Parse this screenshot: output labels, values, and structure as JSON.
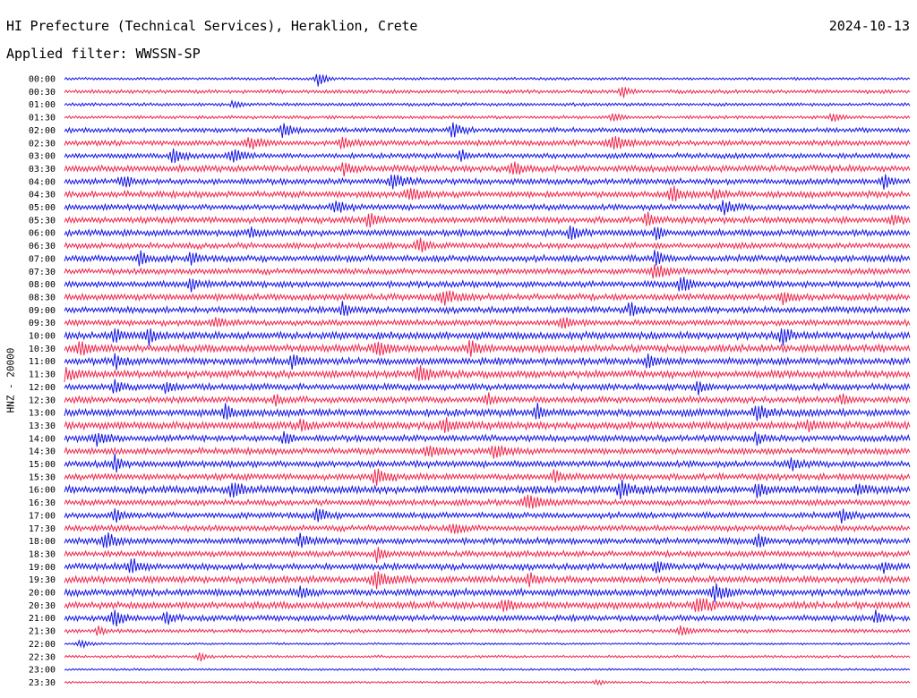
{
  "header": {
    "station": "HI Prefecture (Technical Services), Heraklion, Crete",
    "date": "2024-10-13",
    "filter": "Applied filter: WWSSN-SP"
  },
  "channel_label": "HNZ - 20000",
  "colors": {
    "even": "#1414e6",
    "odd": "#f0284e"
  },
  "chart_data": {
    "type": "line",
    "title": "HI Prefecture (Technical Services), Heraklion, Crete",
    "date": "2024-10-13",
    "ylabel": "HNZ - 20000",
    "grid": false,
    "legend": "none",
    "rows": [
      {
        "label": "00:00",
        "amp": 0.25,
        "events": [
          {
            "t": 0.3,
            "a": 1.4,
            "w": 0.006
          }
        ]
      },
      {
        "label": "00:30",
        "amp": 0.35,
        "events": [
          {
            "t": 0.66,
            "a": 1.0,
            "w": 0.006
          }
        ]
      },
      {
        "label": "01:00",
        "amp": 0.3,
        "events": [
          {
            "t": 0.2,
            "a": 0.5,
            "w": 0.006
          }
        ]
      },
      {
        "label": "01:30",
        "amp": 0.3,
        "events": [
          {
            "t": 0.65,
            "a": 0.7,
            "w": 0.008
          },
          {
            "t": 0.91,
            "a": 0.7,
            "w": 0.008
          }
        ]
      },
      {
        "label": "02:00",
        "amp": 0.45,
        "events": [
          {
            "t": 0.26,
            "a": 1.2,
            "w": 0.008
          },
          {
            "t": 0.46,
            "a": 1.3,
            "w": 0.008
          }
        ]
      },
      {
        "label": "02:30",
        "amp": 0.5,
        "events": [
          {
            "t": 0.22,
            "a": 0.9,
            "w": 0.012
          },
          {
            "t": 0.33,
            "a": 0.9,
            "w": 0.01
          },
          {
            "t": 0.65,
            "a": 1.0,
            "w": 0.015
          }
        ]
      },
      {
        "label": "03:00",
        "amp": 0.5,
        "events": [
          {
            "t": 0.13,
            "a": 1.1,
            "w": 0.008
          },
          {
            "t": 0.2,
            "a": 1.3,
            "w": 0.008
          },
          {
            "t": 0.47,
            "a": 0.9,
            "w": 0.006
          }
        ]
      },
      {
        "label": "03:30",
        "amp": 0.6,
        "events": [
          {
            "t": 0.33,
            "a": 1.0,
            "w": 0.006
          },
          {
            "t": 0.53,
            "a": 1.3,
            "w": 0.008
          }
        ]
      },
      {
        "label": "04:00",
        "amp": 0.55,
        "events": [
          {
            "t": 0.07,
            "a": 1.0,
            "w": 0.008
          },
          {
            "t": 0.39,
            "a": 1.2,
            "w": 0.01
          },
          {
            "t": 0.97,
            "a": 1.1,
            "w": 0.006
          }
        ]
      },
      {
        "label": "04:30",
        "amp": 0.6,
        "events": [
          {
            "t": 0.41,
            "a": 0.9,
            "w": 0.01
          },
          {
            "t": 0.72,
            "a": 1.3,
            "w": 0.008
          },
          {
            "t": 0.77,
            "a": 0.9,
            "w": 0.008
          }
        ]
      },
      {
        "label": "05:00",
        "amp": 0.55,
        "events": [
          {
            "t": 0.32,
            "a": 1.0,
            "w": 0.008
          },
          {
            "t": 0.78,
            "a": 1.1,
            "w": 0.008
          }
        ]
      },
      {
        "label": "05:30",
        "amp": 0.6,
        "events": [
          {
            "t": 0.36,
            "a": 1.1,
            "w": 0.008
          },
          {
            "t": 0.69,
            "a": 1.0,
            "w": 0.008
          },
          {
            "t": 0.98,
            "a": 1.0,
            "w": 0.006
          }
        ]
      },
      {
        "label": "06:00",
        "amp": 0.6,
        "events": [
          {
            "t": 0.22,
            "a": 0.8,
            "w": 0.006
          },
          {
            "t": 0.6,
            "a": 1.0,
            "w": 0.008
          },
          {
            "t": 0.7,
            "a": 1.3,
            "w": 0.006
          }
        ]
      },
      {
        "label": "06:30",
        "amp": 0.55,
        "events": [
          {
            "t": 0.42,
            "a": 1.0,
            "w": 0.008
          }
        ]
      },
      {
        "label": "07:00",
        "amp": 0.6,
        "events": [
          {
            "t": 0.09,
            "a": 1.3,
            "w": 0.006
          },
          {
            "t": 0.15,
            "a": 1.1,
            "w": 0.006
          },
          {
            "t": 0.7,
            "a": 1.3,
            "w": 0.006
          }
        ]
      },
      {
        "label": "07:30",
        "amp": 0.55,
        "events": [
          {
            "t": 0.7,
            "a": 1.0,
            "w": 0.012
          }
        ]
      },
      {
        "label": "08:00",
        "amp": 0.6,
        "events": [
          {
            "t": 0.15,
            "a": 1.0,
            "w": 0.006
          },
          {
            "t": 0.73,
            "a": 1.3,
            "w": 0.008
          }
        ]
      },
      {
        "label": "08:30",
        "amp": 0.6,
        "events": [
          {
            "t": 0.45,
            "a": 1.0,
            "w": 0.012
          },
          {
            "t": 0.85,
            "a": 0.9,
            "w": 0.008
          }
        ]
      },
      {
        "label": "09:00",
        "amp": 0.6,
        "events": [
          {
            "t": 0.33,
            "a": 1.2,
            "w": 0.006
          },
          {
            "t": 0.67,
            "a": 1.3,
            "w": 0.006
          }
        ]
      },
      {
        "label": "09:30",
        "amp": 0.55,
        "events": [
          {
            "t": 0.18,
            "a": 0.9,
            "w": 0.006
          },
          {
            "t": 0.59,
            "a": 0.8,
            "w": 0.01
          }
        ]
      },
      {
        "label": "10:00",
        "amp": 0.7,
        "events": [
          {
            "t": 0.06,
            "a": 1.4,
            "w": 0.006
          },
          {
            "t": 0.1,
            "a": 1.3,
            "w": 0.006
          },
          {
            "t": 0.85,
            "a": 1.3,
            "w": 0.008
          }
        ]
      },
      {
        "label": "10:30",
        "amp": 0.7,
        "events": [
          {
            "t": 0.02,
            "a": 1.0,
            "w": 0.01
          },
          {
            "t": 0.37,
            "a": 1.0,
            "w": 0.01
          },
          {
            "t": 0.48,
            "a": 1.2,
            "w": 0.008
          }
        ]
      },
      {
        "label": "11:00",
        "amp": 0.65,
        "events": [
          {
            "t": 0.06,
            "a": 1.2,
            "w": 0.006
          },
          {
            "t": 0.27,
            "a": 1.2,
            "w": 0.006
          },
          {
            "t": 0.69,
            "a": 1.3,
            "w": 0.006
          }
        ]
      },
      {
        "label": "11:30",
        "amp": 0.7,
        "events": [
          {
            "t": 0.0,
            "a": 1.1,
            "w": 0.01
          },
          {
            "t": 0.42,
            "a": 1.0,
            "w": 0.01
          }
        ]
      },
      {
        "label": "12:00",
        "amp": 0.6,
        "events": [
          {
            "t": 0.06,
            "a": 1.0,
            "w": 0.006
          },
          {
            "t": 0.12,
            "a": 1.1,
            "w": 0.006
          },
          {
            "t": 0.75,
            "a": 1.1,
            "w": 0.006
          }
        ]
      },
      {
        "label": "12:30",
        "amp": 0.6,
        "events": [
          {
            "t": 0.25,
            "a": 1.0,
            "w": 0.006
          },
          {
            "t": 0.5,
            "a": 1.1,
            "w": 0.006
          },
          {
            "t": 0.92,
            "a": 0.9,
            "w": 0.006
          }
        ]
      },
      {
        "label": "13:00",
        "amp": 0.7,
        "events": [
          {
            "t": 0.19,
            "a": 1.3,
            "w": 0.006
          },
          {
            "t": 0.56,
            "a": 1.3,
            "w": 0.006
          },
          {
            "t": 0.82,
            "a": 1.3,
            "w": 0.008
          }
        ]
      },
      {
        "label": "13:30",
        "amp": 0.7,
        "events": [
          {
            "t": 0.28,
            "a": 1.0,
            "w": 0.006
          },
          {
            "t": 0.45,
            "a": 1.2,
            "w": 0.008
          },
          {
            "t": 0.88,
            "a": 1.0,
            "w": 0.006
          }
        ]
      },
      {
        "label": "14:00",
        "amp": 0.6,
        "events": [
          {
            "t": 0.04,
            "a": 1.1,
            "w": 0.01
          },
          {
            "t": 0.26,
            "a": 1.0,
            "w": 0.006
          },
          {
            "t": 0.82,
            "a": 1.1,
            "w": 0.006
          }
        ]
      },
      {
        "label": "14:30",
        "amp": 0.6,
        "events": [
          {
            "t": 0.43,
            "a": 0.9,
            "w": 0.01
          },
          {
            "t": 0.51,
            "a": 1.0,
            "w": 0.01
          }
        ]
      },
      {
        "label": "15:00",
        "amp": 0.6,
        "events": [
          {
            "t": 0.06,
            "a": 1.4,
            "w": 0.006
          },
          {
            "t": 0.86,
            "a": 1.2,
            "w": 0.006
          }
        ]
      },
      {
        "label": "15:30",
        "amp": 0.6,
        "events": [
          {
            "t": 0.37,
            "a": 1.1,
            "w": 0.01
          },
          {
            "t": 0.58,
            "a": 1.0,
            "w": 0.006
          }
        ]
      },
      {
        "label": "16:00",
        "amp": 0.7,
        "events": [
          {
            "t": 0.2,
            "a": 1.1,
            "w": 0.01
          },
          {
            "t": 0.66,
            "a": 1.1,
            "w": 0.012
          },
          {
            "t": 0.82,
            "a": 1.3,
            "w": 0.006
          },
          {
            "t": 0.94,
            "a": 1.1,
            "w": 0.006
          }
        ]
      },
      {
        "label": "16:30",
        "amp": 0.55,
        "events": [
          {
            "t": 0.55,
            "a": 1.0,
            "w": 0.014
          }
        ]
      },
      {
        "label": "17:00",
        "amp": 0.55,
        "events": [
          {
            "t": 0.06,
            "a": 1.3,
            "w": 0.006
          },
          {
            "t": 0.3,
            "a": 1.1,
            "w": 0.008
          },
          {
            "t": 0.92,
            "a": 1.2,
            "w": 0.006
          }
        ]
      },
      {
        "label": "17:30",
        "amp": 0.55,
        "events": [
          {
            "t": 0.46,
            "a": 0.9,
            "w": 0.008
          }
        ]
      },
      {
        "label": "18:00",
        "amp": 0.6,
        "events": [
          {
            "t": 0.05,
            "a": 1.4,
            "w": 0.008
          },
          {
            "t": 0.28,
            "a": 1.0,
            "w": 0.008
          },
          {
            "t": 0.82,
            "a": 1.2,
            "w": 0.006
          }
        ]
      },
      {
        "label": "18:30",
        "amp": 0.55,
        "events": [
          {
            "t": 0.37,
            "a": 1.2,
            "w": 0.006
          }
        ]
      },
      {
        "label": "19:00",
        "amp": 0.6,
        "events": [
          {
            "t": 0.08,
            "a": 1.4,
            "w": 0.008
          },
          {
            "t": 0.7,
            "a": 1.0,
            "w": 0.006
          },
          {
            "t": 0.97,
            "a": 0.9,
            "w": 0.006
          }
        ]
      },
      {
        "label": "19:30",
        "amp": 0.65,
        "events": [
          {
            "t": 0.37,
            "a": 1.3,
            "w": 0.012
          },
          {
            "t": 0.55,
            "a": 1.0,
            "w": 0.006
          }
        ]
      },
      {
        "label": "20:00",
        "amp": 0.65,
        "events": [
          {
            "t": 0.28,
            "a": 1.2,
            "w": 0.006
          },
          {
            "t": 0.77,
            "a": 1.3,
            "w": 0.01
          }
        ]
      },
      {
        "label": "20:30",
        "amp": 0.65,
        "events": [
          {
            "t": 0.52,
            "a": 1.1,
            "w": 0.008
          },
          {
            "t": 0.75,
            "a": 1.3,
            "w": 0.012
          }
        ]
      },
      {
        "label": "21:00",
        "amp": 0.55,
        "events": [
          {
            "t": 0.06,
            "a": 1.4,
            "w": 0.008
          },
          {
            "t": 0.12,
            "a": 1.0,
            "w": 0.006
          },
          {
            "t": 0.96,
            "a": 1.0,
            "w": 0.006
          }
        ]
      },
      {
        "label": "21:30",
        "amp": 0.35,
        "events": [
          {
            "t": 0.04,
            "a": 0.8,
            "w": 0.006
          },
          {
            "t": 0.73,
            "a": 0.9,
            "w": 0.008
          }
        ]
      },
      {
        "label": "22:00",
        "amp": 0.2,
        "events": [
          {
            "t": 0.02,
            "a": 0.6,
            "w": 0.008
          }
        ]
      },
      {
        "label": "22:30",
        "amp": 0.25,
        "events": [
          {
            "t": 0.16,
            "a": 0.9,
            "w": 0.006
          }
        ]
      },
      {
        "label": "23:00",
        "amp": 0.2,
        "events": []
      },
      {
        "label": "23:30",
        "amp": 0.2,
        "events": [
          {
            "t": 0.63,
            "a": 0.5,
            "w": 0.006
          }
        ]
      }
    ]
  }
}
